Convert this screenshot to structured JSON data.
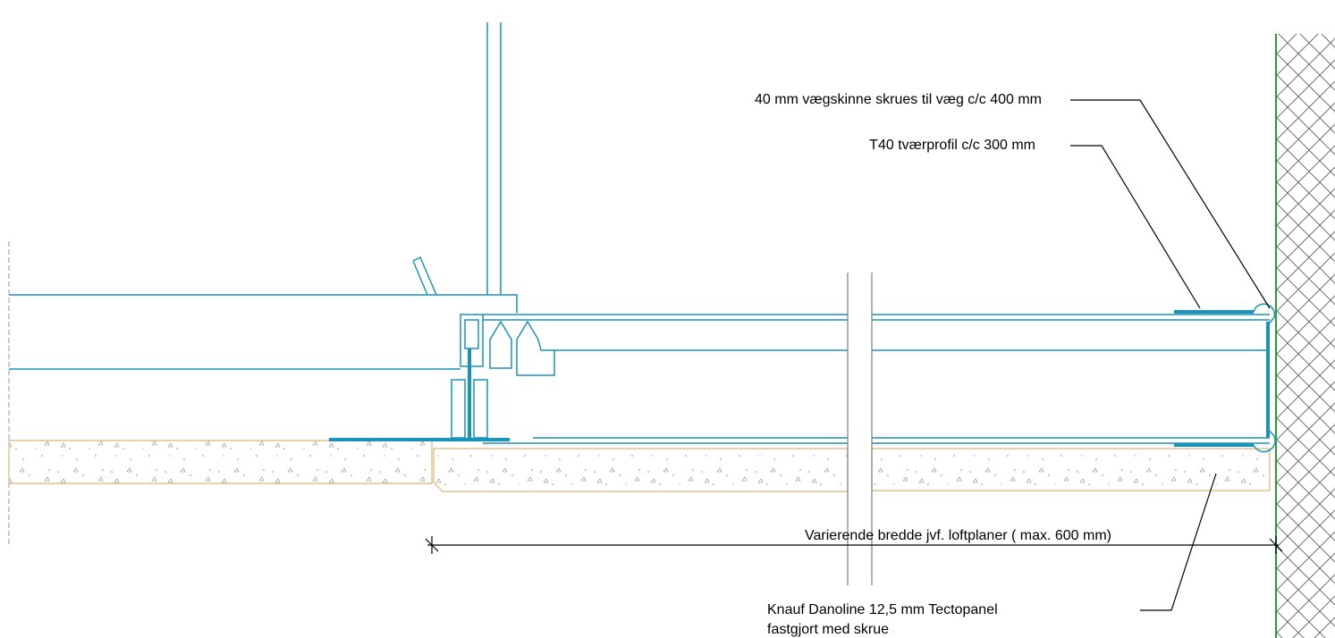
{
  "annotations": [
    {
      "text": "40 mm vægskinne skrues til væg c/c 400 mm"
    },
    {
      "text": "T40 tværprofil c/c 300 mm"
    },
    {
      "lines": [
        "Knauf Danoline 12,5 mm Tectopanel",
        "fastgjort med skrue"
      ]
    }
  ],
  "dimension": {
    "text": "Varierende bredde jvf. loftplaner ( max. 600 mm)"
  }
}
